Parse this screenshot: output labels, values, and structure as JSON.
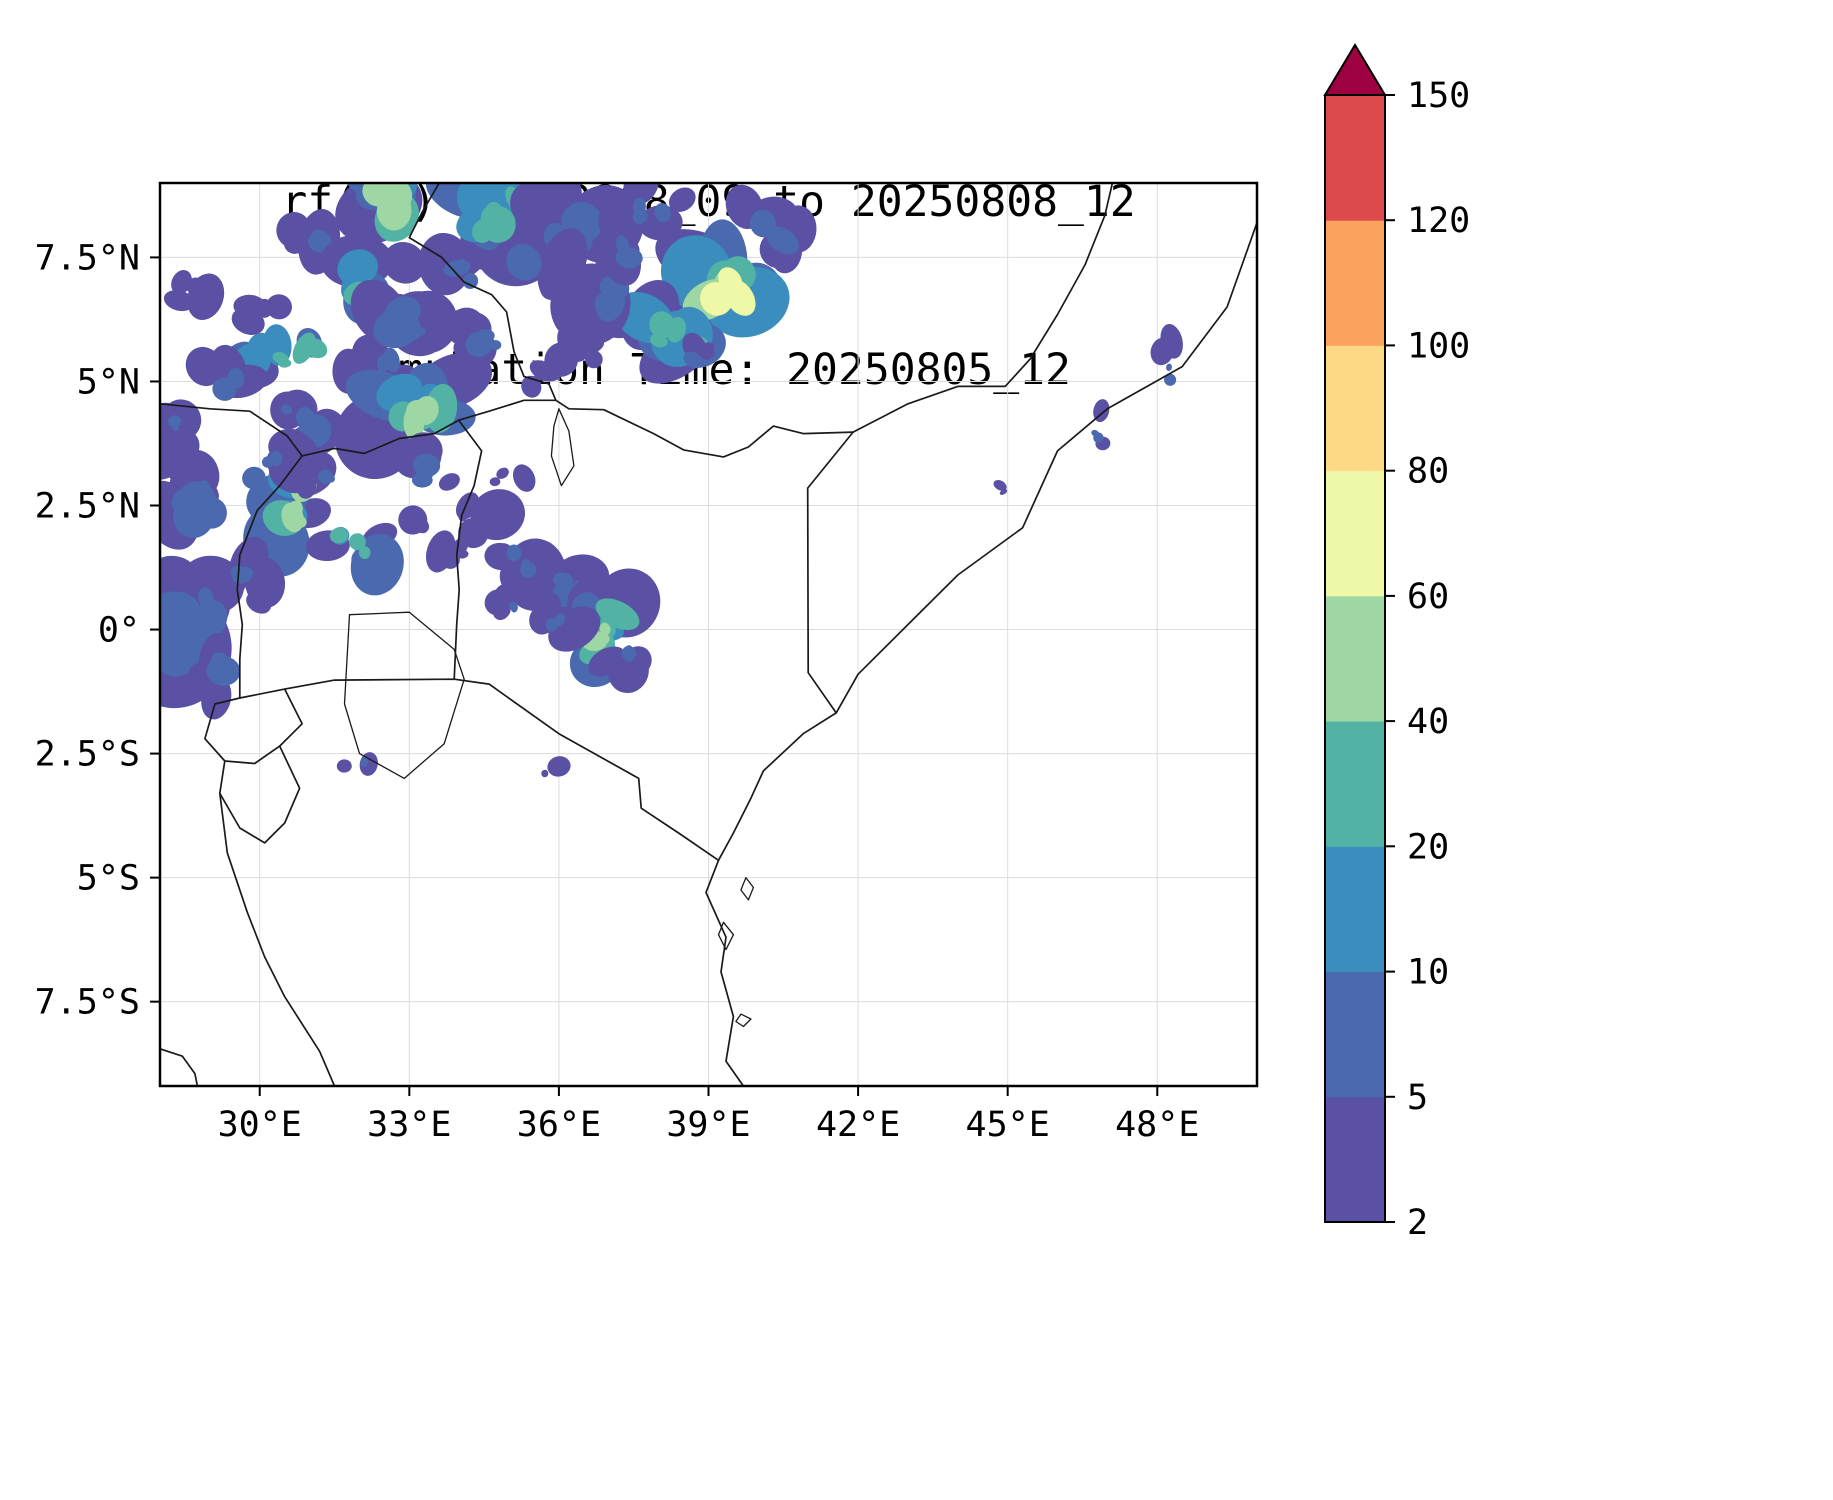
{
  "chart_data": {
    "type": "heatmap",
    "title": "rf(mm) 20250808_09 to 20250808_12",
    "subtitle": "Simulation Time: 20250805_12",
    "variable": "rf(mm)",
    "valid_from": "20250808_09",
    "valid_to": "20250808_12",
    "simulation_time": "20250805_12",
    "grid": true,
    "x_axis": {
      "range": [
        28.0,
        50.0
      ],
      "ticks": [
        30,
        33,
        36,
        39,
        42,
        45,
        48
      ],
      "tick_labels": [
        "30°E",
        "33°E",
        "36°E",
        "39°E",
        "42°E",
        "45°E",
        "48°E"
      ]
    },
    "y_axis": {
      "range": [
        -9.2,
        9.0
      ],
      "ticks": [
        7.5,
        5,
        2.5,
        0,
        -2.5,
        -5,
        -7.5
      ],
      "tick_labels": [
        "7.5°N",
        "5°N",
        "2.5°N",
        "0°",
        "2.5°S",
        "5°S",
        "7.5°S"
      ]
    },
    "colorbar": {
      "levels": [
        2,
        5,
        10,
        20,
        40,
        60,
        80,
        100,
        120,
        150
      ],
      "colors": [
        "#5b51a4",
        "#4a69ae",
        "#3b8dbd",
        "#52b3a4",
        "#9ed7a4",
        "#eef8a6",
        "#fdd985",
        "#fba35d",
        "#dd4a4c"
      ],
      "over_color": "#9e0142",
      "extend": "max",
      "unit": "mm"
    },
    "map": {
      "borders": [
        [
          [
            28.0,
            4.55
          ],
          [
            29.0,
            4.45
          ],
          [
            29.8,
            4.4
          ],
          [
            30.55,
            3.9
          ],
          [
            30.85,
            3.5
          ],
          [
            31.5,
            3.65
          ],
          [
            32.1,
            3.55
          ],
          [
            32.8,
            3.85
          ],
          [
            33.5,
            3.95
          ],
          [
            33.99,
            4.22
          ]
        ],
        [
          [
            30.85,
            3.5
          ],
          [
            30.4,
            2.9
          ],
          [
            29.95,
            2.4
          ],
          [
            29.6,
            1.5
          ],
          [
            29.55,
            0.8
          ],
          [
            29.65,
            0.1
          ],
          [
            29.6,
            -0.6
          ],
          [
            29.6,
            -1.38
          ]
        ],
        [
          [
            29.6,
            -1.38
          ],
          [
            30.5,
            -1.2
          ],
          [
            31.5,
            -1.02
          ],
          [
            33.9,
            -1.0
          ],
          [
            34.6,
            -1.1
          ],
          [
            36.0,
            -2.1
          ],
          [
            37.6,
            -3.0
          ],
          [
            37.65,
            -3.6
          ],
          [
            38.4,
            -4.1
          ],
          [
            39.2,
            -4.65
          ]
        ],
        [
          [
            29.6,
            -1.38
          ],
          [
            29.1,
            -1.5
          ],
          [
            28.9,
            -2.2
          ],
          [
            29.3,
            -2.65
          ],
          [
            29.9,
            -2.7
          ],
          [
            30.4,
            -2.35
          ],
          [
            30.85,
            -1.9
          ],
          [
            30.5,
            -1.2
          ]
        ],
        [
          [
            29.3,
            -2.65
          ],
          [
            29.2,
            -3.3
          ],
          [
            29.6,
            -4.0
          ],
          [
            30.1,
            -4.3
          ],
          [
            30.5,
            -3.9
          ],
          [
            30.8,
            -3.2
          ],
          [
            30.4,
            -2.35
          ]
        ],
        [
          [
            29.2,
            -3.3
          ],
          [
            29.35,
            -4.5
          ],
          [
            29.75,
            -5.7
          ],
          [
            30.1,
            -6.6
          ],
          [
            30.5,
            -7.4
          ],
          [
            31.2,
            -8.5
          ],
          [
            31.5,
            -9.2
          ]
        ],
        [
          [
            28.0,
            -8.45
          ],
          [
            28.45,
            -8.6
          ],
          [
            28.7,
            -8.95
          ],
          [
            28.75,
            -9.2
          ]
        ],
        [
          [
            33.99,
            4.22
          ],
          [
            34.45,
            3.6
          ],
          [
            34.3,
            2.9
          ],
          [
            34.05,
            2.3
          ],
          [
            33.95,
            1.5
          ],
          [
            34.0,
            0.8
          ],
          [
            33.95,
            0.1
          ],
          [
            33.9,
            -1.0
          ]
        ],
        [
          [
            33.99,
            4.22
          ],
          [
            34.6,
            4.4
          ],
          [
            35.3,
            4.62
          ],
          [
            35.94,
            4.62
          ],
          [
            36.2,
            4.45
          ],
          [
            36.9,
            4.43
          ],
          [
            37.9,
            3.95
          ],
          [
            38.5,
            3.62
          ],
          [
            39.3,
            3.48
          ],
          [
            39.8,
            3.68
          ],
          [
            40.3,
            4.1
          ],
          [
            40.9,
            3.95
          ],
          [
            41.9,
            3.98
          ]
        ],
        [
          [
            41.9,
            3.98
          ],
          [
            40.99,
            2.85
          ],
          [
            41.0,
            -0.87
          ],
          [
            41.56,
            -1.68
          ]
        ],
        [
          [
            33.6,
            9.0
          ],
          [
            33.25,
            8.4
          ],
          [
            33.0,
            7.9
          ],
          [
            33.65,
            7.5
          ],
          [
            34.1,
            7.0
          ],
          [
            34.65,
            6.75
          ],
          [
            34.95,
            6.4
          ],
          [
            35.1,
            5.6
          ],
          [
            35.3,
            5.1
          ],
          [
            35.8,
            4.95
          ],
          [
            35.94,
            4.62
          ]
        ],
        [
          [
            41.9,
            3.98
          ],
          [
            43.0,
            4.55
          ],
          [
            44.0,
            4.9
          ],
          [
            44.95,
            4.9
          ],
          [
            45.45,
            5.45
          ],
          [
            46.0,
            6.35
          ],
          [
            46.55,
            7.35
          ],
          [
            46.95,
            8.35
          ],
          [
            47.1,
            9.0
          ]
        ]
      ],
      "coastline": [
        [
          50.0,
          8.2
        ],
        [
          49.4,
          6.5
        ],
        [
          48.5,
          5.3
        ],
        [
          47.0,
          4.45
        ],
        [
          46.0,
          3.6
        ],
        [
          45.3,
          2.05
        ],
        [
          44.0,
          1.1
        ],
        [
          42.9,
          0.0
        ],
        [
          42.0,
          -0.9
        ],
        [
          41.56,
          -1.68
        ],
        [
          40.9,
          -2.1
        ],
        [
          40.1,
          -2.85
        ],
        [
          39.85,
          -3.4
        ],
        [
          39.5,
          -4.1
        ],
        [
          39.2,
          -4.65
        ],
        [
          38.95,
          -5.3
        ],
        [
          39.35,
          -6.2
        ],
        [
          39.25,
          -6.9
        ],
        [
          39.5,
          -7.8
        ],
        [
          39.35,
          -8.7
        ],
        [
          39.7,
          -9.2
        ]
      ],
      "lakes": [
        [
          [
            31.8,
            0.3
          ],
          [
            33.0,
            0.35
          ],
          [
            33.9,
            -0.4
          ],
          [
            34.1,
            -1.0
          ],
          [
            33.7,
            -2.3
          ],
          [
            32.9,
            -3.0
          ],
          [
            32.0,
            -2.5
          ],
          [
            31.7,
            -1.5
          ]
        ],
        [
          [
            36.0,
            4.45
          ],
          [
            36.2,
            4.0
          ],
          [
            36.3,
            3.3
          ],
          [
            36.05,
            2.9
          ],
          [
            35.85,
            3.5
          ],
          [
            35.9,
            4.1
          ]
        ]
      ],
      "islands": [
        [
          [
            39.75,
            -5.0
          ],
          [
            39.9,
            -5.2
          ],
          [
            39.8,
            -5.45
          ],
          [
            39.65,
            -5.25
          ]
        ],
        [
          [
            39.3,
            -5.9
          ],
          [
            39.5,
            -6.15
          ],
          [
            39.35,
            -6.45
          ],
          [
            39.2,
            -6.15
          ]
        ],
        [
          [
            39.65,
            -7.75
          ],
          [
            39.85,
            -7.85
          ],
          [
            39.7,
            -8.0
          ],
          [
            39.55,
            -7.9
          ]
        ]
      ],
      "rain_clusters": [
        {
          "lon": 32.6,
          "lat": 8.6,
          "w": 1.4,
          "h": 1.6,
          "n": 14,
          "level": 4
        },
        {
          "lon": 31.1,
          "lat": 7.9,
          "w": 1.2,
          "h": 1.0,
          "n": 8,
          "level": 2
        },
        {
          "lon": 34.8,
          "lat": 8.4,
          "w": 2.2,
          "h": 1.4,
          "n": 14,
          "level": 3
        },
        {
          "lon": 36.3,
          "lat": 8.0,
          "w": 2.0,
          "h": 1.6,
          "n": 12,
          "level": 2
        },
        {
          "lon": 37.9,
          "lat": 8.5,
          "w": 1.6,
          "h": 1.0,
          "n": 8,
          "level": 2
        },
        {
          "lon": 39.3,
          "lat": 6.9,
          "w": 1.8,
          "h": 1.6,
          "n": 16,
          "level": 5
        },
        {
          "lon": 38.3,
          "lat": 6.0,
          "w": 2.2,
          "h": 1.4,
          "n": 12,
          "level": 3
        },
        {
          "lon": 36.9,
          "lat": 6.7,
          "w": 1.6,
          "h": 1.2,
          "n": 9,
          "level": 2
        },
        {
          "lon": 40.3,
          "lat": 7.9,
          "w": 1.6,
          "h": 1.2,
          "n": 8,
          "level": 2
        },
        {
          "lon": 32.2,
          "lat": 6.9,
          "w": 1.4,
          "h": 1.2,
          "n": 9,
          "level": 3
        },
        {
          "lon": 33.0,
          "lat": 6.1,
          "w": 1.6,
          "h": 1.2,
          "n": 9,
          "level": 2
        },
        {
          "lon": 30.6,
          "lat": 5.5,
          "w": 2.6,
          "h": 1.0,
          "n": 12,
          "level": 3
        },
        {
          "lon": 32.5,
          "lat": 5.2,
          "w": 1.6,
          "h": 1.0,
          "n": 8,
          "level": 2
        },
        {
          "lon": 33.3,
          "lat": 4.4,
          "w": 1.8,
          "h": 1.4,
          "n": 14,
          "level": 4
        },
        {
          "lon": 30.9,
          "lat": 4.2,
          "w": 1.4,
          "h": 1.0,
          "n": 8,
          "level": 2
        },
        {
          "lon": 28.6,
          "lat": 6.8,
          "w": 0.9,
          "h": 0.8,
          "n": 5,
          "level": 1
        },
        {
          "lon": 28.7,
          "lat": 2.7,
          "w": 1.6,
          "h": 1.6,
          "n": 12,
          "level": 2
        },
        {
          "lon": 30.7,
          "lat": 2.4,
          "w": 1.2,
          "h": 1.8,
          "n": 12,
          "level": 4
        },
        {
          "lon": 31.9,
          "lat": 1.7,
          "w": 1.2,
          "h": 1.0,
          "n": 8,
          "level": 3
        },
        {
          "lon": 28.6,
          "lat": 0.3,
          "w": 1.6,
          "h": 2.4,
          "n": 16,
          "level": 2
        },
        {
          "lon": 29.8,
          "lat": 1.0,
          "w": 1.2,
          "h": 1.0,
          "n": 7,
          "level": 2
        },
        {
          "lon": 33.5,
          "lat": 3.2,
          "w": 1.0,
          "h": 0.8,
          "n": 6,
          "level": 2
        },
        {
          "lon": 34.3,
          "lat": 2.2,
          "w": 1.0,
          "h": 0.8,
          "n": 5,
          "level": 1
        },
        {
          "lon": 35.3,
          "lat": 1.4,
          "w": 1.4,
          "h": 1.0,
          "n": 8,
          "level": 2
        },
        {
          "lon": 36.2,
          "lat": 0.8,
          "w": 1.2,
          "h": 1.0,
          "n": 8,
          "level": 2
        },
        {
          "lon": 36.8,
          "lat": -0.2,
          "w": 1.2,
          "h": 1.6,
          "n": 14,
          "level": 4
        },
        {
          "lon": 37.4,
          "lat": -0.5,
          "w": 1.0,
          "h": 0.8,
          "n": 6,
          "level": 2
        },
        {
          "lon": 35.9,
          "lat": 0.2,
          "w": 0.9,
          "h": 0.9,
          "n": 6,
          "level": 2
        },
        {
          "lon": 32.1,
          "lat": -2.6,
          "w": 0.8,
          "h": 0.5,
          "n": 4,
          "level": 2
        },
        {
          "lon": 35.8,
          "lat": -2.9,
          "w": 0.6,
          "h": 0.4,
          "n": 3,
          "level": 1
        },
        {
          "lon": 48.2,
          "lat": 5.3,
          "w": 0.5,
          "h": 1.2,
          "n": 5,
          "level": 2
        },
        {
          "lon": 46.8,
          "lat": 4.0,
          "w": 0.35,
          "h": 0.8,
          "n": 4,
          "level": 2
        },
        {
          "lon": 44.9,
          "lat": 2.8,
          "w": 0.3,
          "h": 0.3,
          "n": 2,
          "level": 1
        },
        {
          "lon": 30.2,
          "lat": 3.3,
          "w": 1.2,
          "h": 0.9,
          "n": 7,
          "level": 2
        },
        {
          "lon": 34.5,
          "lat": 5.9,
          "w": 1.2,
          "h": 1.0,
          "n": 7,
          "level": 2
        },
        {
          "lon": 35.6,
          "lat": 5.0,
          "w": 1.0,
          "h": 0.8,
          "n": 5,
          "level": 1
        },
        {
          "lon": 33.9,
          "lat": 7.3,
          "w": 1.2,
          "h": 1.0,
          "n": 7,
          "level": 2
        },
        {
          "lon": 35.5,
          "lat": 7.4,
          "w": 1.4,
          "h": 1.0,
          "n": 8,
          "level": 2
        },
        {
          "lon": 30.0,
          "lat": 6.5,
          "w": 1.0,
          "h": 0.8,
          "n": 5,
          "level": 1
        },
        {
          "lon": 29.3,
          "lat": 5.0,
          "w": 1.0,
          "h": 1.0,
          "n": 6,
          "level": 2
        },
        {
          "lon": 28.4,
          "lat": 4.0,
          "w": 0.8,
          "h": 1.0,
          "n": 6,
          "level": 2
        },
        {
          "lon": 34.9,
          "lat": 3.1,
          "w": 0.8,
          "h": 0.6,
          "n": 4,
          "level": 1
        },
        {
          "lon": 37.3,
          "lat": 7.6,
          "w": 1.0,
          "h": 0.8,
          "n": 6,
          "level": 2
        },
        {
          "lon": 38.8,
          "lat": 5.4,
          "w": 0.9,
          "h": 0.7,
          "n": 5,
          "level": 2
        },
        {
          "lon": 36.6,
          "lat": 5.6,
          "w": 0.8,
          "h": 0.6,
          "n": 4,
          "level": 1
        },
        {
          "lon": 35.0,
          "lat": 0.5,
          "w": 0.8,
          "h": 0.8,
          "n": 5,
          "level": 2
        },
        {
          "lon": 34.0,
          "lat": 1.5,
          "w": 0.8,
          "h": 0.6,
          "n": 4,
          "level": 1
        },
        {
          "lon": 31.4,
          "lat": 3.1,
          "w": 0.9,
          "h": 0.7,
          "n": 5,
          "level": 2
        },
        {
          "lon": 33.0,
          "lat": 2.3,
          "w": 0.8,
          "h": 0.6,
          "n": 4,
          "level": 1
        },
        {
          "lon": 29.2,
          "lat": -0.9,
          "w": 1.0,
          "h": 0.9,
          "n": 6,
          "level": 2
        }
      ]
    }
  }
}
